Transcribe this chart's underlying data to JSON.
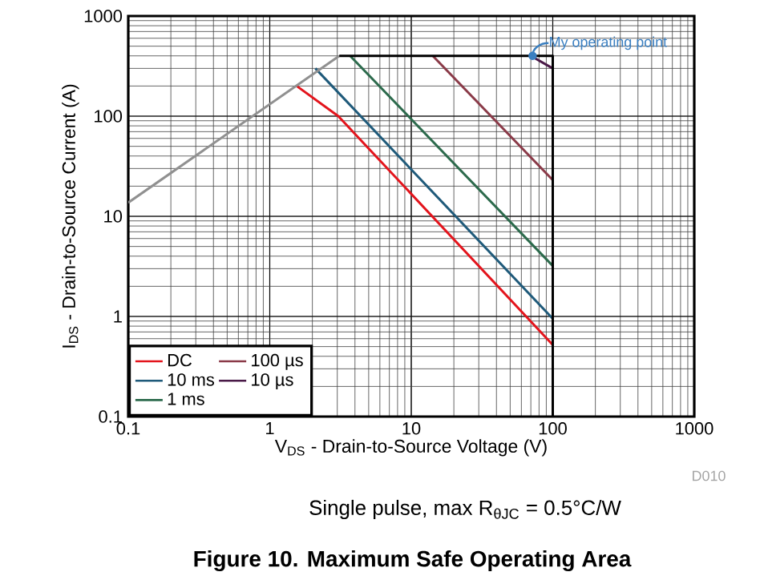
{
  "chart_data": {
    "type": "line",
    "title": "Figure 10. Maximum Safe Operating Area",
    "xlabel": "V$_{DS}$ - Drain-to-Source Voltage (V)",
    "ylabel": "I$_{DS}$ - Drain-to-Source Current (A)",
    "log": "xy",
    "grid": true,
    "legend": "bottom left",
    "xlim": [
      0.1,
      1000
    ],
    "ylim": [
      0.1,
      1000
    ],
    "xticks": [
      0.1,
      1,
      10,
      100,
      1000
    ],
    "yticks": [
      0.1,
      1,
      10,
      100,
      1000
    ],
    "series": [
      {
        "name": "DC",
        "color": "#e3141c",
        "x": [
          1.55,
          3.05,
          100
        ],
        "values": [
          200,
          100,
          0.52
        ]
      },
      {
        "name": "10 ms",
        "color": "#1f5a7a",
        "x": [
          2.1,
          100
        ],
        "values": [
          300,
          0.95
        ]
      },
      {
        "name": "1 ms",
        "color": "#2c6a4c",
        "x": [
          3.7,
          100
        ],
        "values": [
          400,
          3.2
        ]
      },
      {
        "name": "100 µs",
        "color": "#8a3a48",
        "x": [
          14.2,
          100
        ],
        "values": [
          400,
          23
        ]
      },
      {
        "name": "10 µs",
        "color": "#4a1a48",
        "x": [
          70,
          100
        ],
        "values": [
          400,
          300
        ]
      },
      {
        "color": "#909090",
        "x": [
          0.1,
          3.1
        ],
        "values": [
          13.7,
          400
        ]
      },
      {
        "color": "#000000",
        "x": [
          3.1,
          100,
          100
        ],
        "values": [
          400,
          400,
          0.1
        ]
      }
    ],
    "annotations": [
      {
        "text": "My operating point",
        "x": 72,
        "y": 400
      },
      "Single pulse, max R$_{θJC}$ = 0.5°C/W",
      "D010"
    ]
  }
}
